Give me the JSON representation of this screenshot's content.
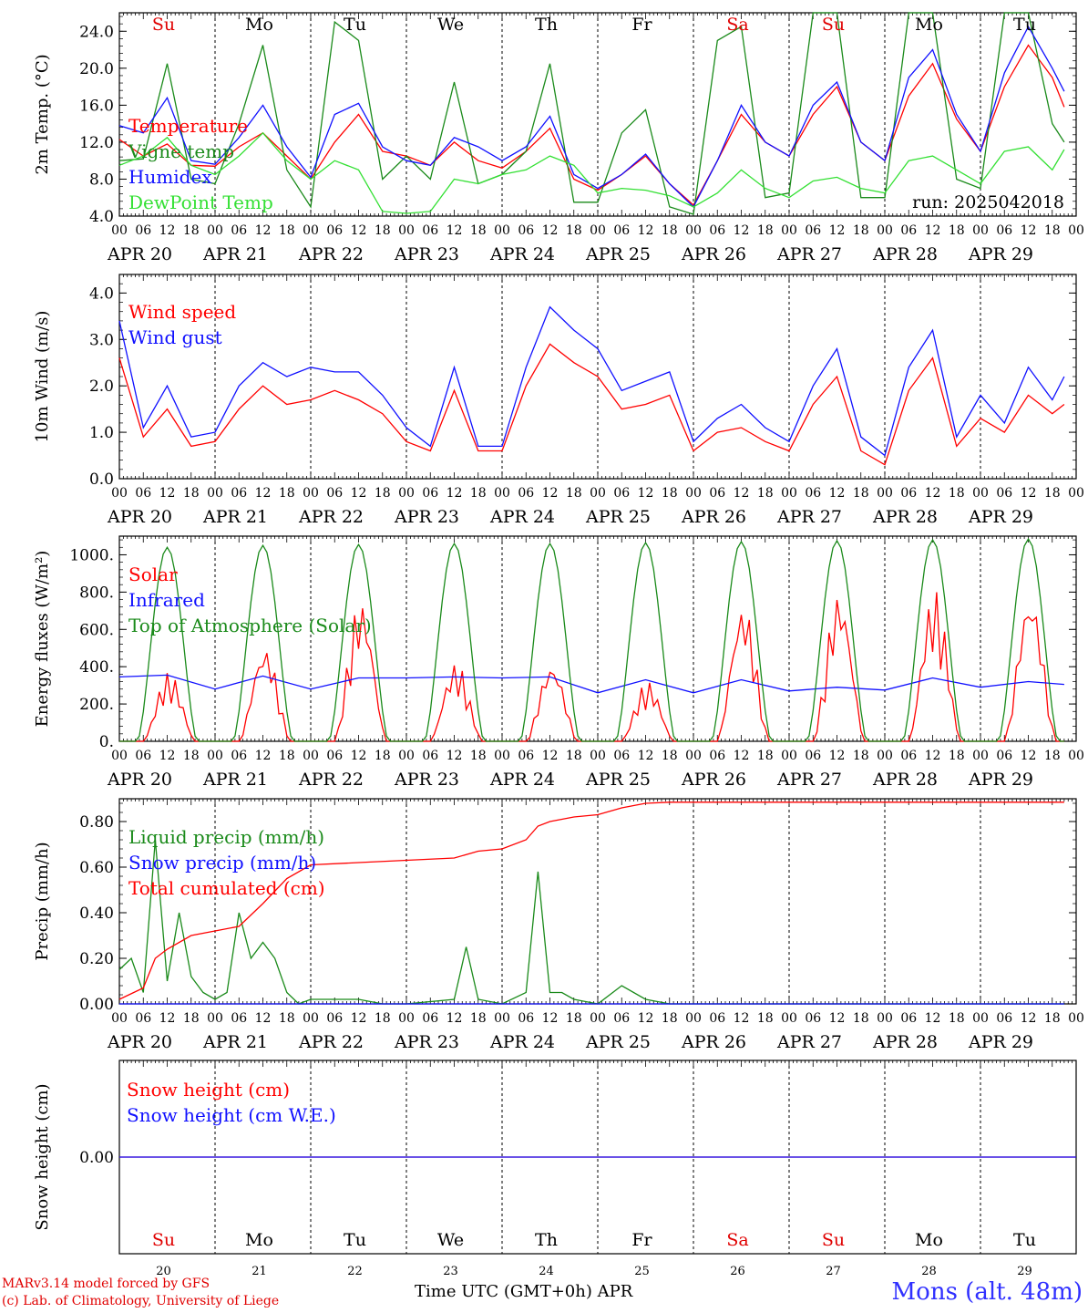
{
  "station": "Mons (alt. 48m)",
  "credit_line1": "MARv3.14 model forced by GFS",
  "credit_line2": "(c) Lab. of Climatology, University of Liege",
  "x_title": "Time UTC (GMT+0h) APR",
  "run_label": "run: 2025042018",
  "hour_ticks": [
    "00",
    "06",
    "12",
    "18"
  ],
  "end_tick": "00",
  "date_labels": [
    "APR 20",
    "APR 21",
    "APR 22",
    "APR 23",
    "APR 24",
    "APR 25",
    "APR 26",
    "APR 27",
    "APR 28",
    "APR 29"
  ],
  "day_numbers": [
    "20",
    "21",
    "22",
    "23",
    "24",
    "25",
    "26",
    "27",
    "28",
    "29"
  ],
  "day_names": [
    {
      "label": "Su",
      "weekend": true
    },
    {
      "label": "Mo",
      "weekend": false
    },
    {
      "label": "Tu",
      "weekend": false
    },
    {
      "label": "We",
      "weekend": false
    },
    {
      "label": "Th",
      "weekend": false
    },
    {
      "label": "Fr",
      "weekend": false
    },
    {
      "label": "Sa",
      "weekend": true
    },
    {
      "label": "Su",
      "weekend": true
    },
    {
      "label": "Mo",
      "weekend": false
    },
    {
      "label": "Tu",
      "weekend": false
    }
  ],
  "colors": {
    "red": "#ff0000",
    "green": "#1a8a1a",
    "blue": "#1010ff",
    "lightgreen": "#33e033",
    "weekend": "#e00000"
  },
  "chart_data": [
    {
      "type": "line",
      "ylabel": "2m Temp. (°C)",
      "ylim": [
        4,
        26
      ],
      "yticks": [
        4,
        8,
        12,
        16,
        20,
        24
      ],
      "ytick_labels": [
        "4.0",
        "8.0",
        "12.0",
        "16.0",
        "20.0",
        "24.0"
      ],
      "x": [
        0,
        6,
        12,
        18,
        24,
        30,
        36,
        42,
        48,
        54,
        60,
        66,
        72,
        78,
        84,
        90,
        96,
        102,
        108,
        114,
        120,
        126,
        132,
        138,
        144,
        150,
        156,
        162,
        168,
        174,
        180,
        186,
        192,
        198,
        204,
        210,
        216,
        222,
        228,
        234,
        237
      ],
      "series": [
        {
          "name": "Temperature",
          "color": "red",
          "values": [
            12.3,
            10.5,
            11.8,
            9.5,
            9.4,
            11.5,
            13.0,
            10.5,
            8.0,
            12.0,
            15.0,
            11.0,
            10.5,
            9.5,
            12.0,
            10.0,
            9.2,
            11.0,
            13.5,
            8.0,
            6.8,
            8.5,
            10.5,
            7.5,
            5.2,
            10.0,
            15.0,
            12.0,
            10.5,
            15.0,
            18.0,
            12.0,
            10.0,
            17.0,
            20.5,
            14.5,
            11.0,
            18.0,
            22.5,
            19.0,
            15.8
          ]
        },
        {
          "name": "Vigne temp",
          "color": "green",
          "values": [
            10.0,
            10.2,
            20.5,
            8.0,
            7.5,
            14.0,
            22.5,
            9.0,
            5.0,
            25.0,
            23.0,
            8.0,
            10.5,
            8.0,
            18.5,
            7.5,
            8.5,
            11.0,
            20.5,
            5.5,
            5.5,
            13.0,
            15.5,
            5.0,
            4.2,
            23.0,
            24.5,
            6.0,
            6.5,
            27.0,
            28.0,
            6.0,
            6.0,
            27.0,
            29.0,
            8.0,
            7.0,
            26.0,
            28.0,
            14.0,
            12.0
          ]
        },
        {
          "name": "Humidex",
          "color": "blue",
          "values": [
            13.8,
            13.0,
            16.8,
            10.0,
            9.6,
            12.5,
            16.0,
            11.5,
            8.2,
            15.0,
            16.2,
            11.5,
            10.0,
            9.5,
            12.5,
            11.5,
            10.0,
            11.5,
            14.8,
            8.5,
            7.0,
            8.5,
            10.7,
            7.5,
            5.0,
            10.0,
            16.0,
            12.0,
            10.5,
            16.0,
            18.5,
            12.0,
            10.0,
            19.0,
            22.0,
            15.0,
            11.0,
            19.5,
            24.5,
            20.0,
            17.5
          ]
        },
        {
          "name": "DewPoint Temp",
          "color": "lightgreen",
          "values": [
            9.5,
            10.5,
            12.5,
            9.5,
            8.5,
            10.5,
            13.0,
            10.0,
            8.0,
            10.0,
            9.0,
            4.5,
            4.3,
            4.5,
            8.0,
            7.5,
            8.5,
            9.0,
            10.5,
            9.5,
            6.5,
            7.0,
            6.8,
            6.2,
            5.0,
            6.5,
            9.0,
            7.0,
            6.0,
            7.8,
            8.2,
            7.0,
            6.5,
            10.0,
            10.5,
            9.0,
            7.5,
            11.0,
            11.5,
            9.0,
            11.2
          ]
        }
      ]
    },
    {
      "type": "line",
      "ylabel": "10m Wind (m/s)",
      "ylim": [
        0,
        4.4
      ],
      "yticks": [
        0,
        1,
        2,
        3,
        4
      ],
      "ytick_labels": [
        "0.0",
        "1.0",
        "2.0",
        "3.0",
        "4.0"
      ],
      "x": [
        0,
        6,
        12,
        18,
        24,
        30,
        36,
        42,
        48,
        54,
        60,
        66,
        72,
        78,
        84,
        90,
        96,
        102,
        108,
        114,
        120,
        126,
        132,
        138,
        144,
        150,
        156,
        162,
        168,
        174,
        180,
        186,
        192,
        198,
        204,
        210,
        216,
        222,
        228,
        234,
        237
      ],
      "series": [
        {
          "name": "Wind speed",
          "color": "red",
          "values": [
            2.6,
            0.9,
            1.5,
            0.7,
            0.8,
            1.5,
            2.0,
            1.6,
            1.7,
            1.9,
            1.7,
            1.4,
            0.8,
            0.6,
            1.9,
            0.6,
            0.6,
            2.0,
            2.9,
            2.5,
            2.2,
            1.5,
            1.6,
            1.8,
            0.6,
            1.0,
            1.1,
            0.8,
            0.6,
            1.6,
            2.2,
            0.6,
            0.3,
            1.9,
            2.6,
            0.7,
            1.3,
            1.0,
            1.8,
            1.4,
            1.6
          ]
        },
        {
          "name": "Wind gust",
          "color": "blue",
          "values": [
            3.4,
            1.1,
            2.0,
            0.9,
            1.0,
            2.0,
            2.5,
            2.2,
            2.4,
            2.3,
            2.3,
            1.8,
            1.1,
            0.7,
            2.4,
            0.7,
            0.7,
            2.4,
            3.7,
            3.2,
            2.8,
            1.9,
            2.1,
            2.3,
            0.8,
            1.3,
            1.6,
            1.1,
            0.8,
            2.0,
            2.8,
            0.9,
            0.5,
            2.4,
            3.2,
            0.9,
            1.8,
            1.2,
            2.4,
            1.7,
            2.2
          ]
        }
      ]
    },
    {
      "type": "line",
      "ylabel": "Energy fluxes (W/m²)",
      "ylim": [
        0,
        1100
      ],
      "yticks": [
        0,
        200,
        400,
        600,
        800,
        1000
      ],
      "ytick_labels": [
        "0.",
        "200.",
        "400.",
        "600.",
        "800.",
        "1000."
      ],
      "series": [
        {
          "name": "Solar",
          "color": "red",
          "peaks": [
            370,
            510,
            760,
            420,
            420,
            320,
            740,
            800,
            810,
            800
          ]
        },
        {
          "name": "Infrared",
          "color": "blue",
          "x": [
            0,
            12,
            24,
            36,
            48,
            60,
            72,
            84,
            96,
            108,
            120,
            132,
            144,
            156,
            168,
            180,
            192,
            204,
            216,
            228,
            237
          ],
          "values": [
            345,
            355,
            280,
            350,
            280,
            340,
            340,
            345,
            340,
            345,
            260,
            330,
            260,
            330,
            270,
            290,
            275,
            340,
            290,
            320,
            305
          ]
        },
        {
          "name": "Top of Atmosphere (Solar)",
          "color": "green",
          "peaks": [
            1040,
            1050,
            1055,
            1060,
            1060,
            1065,
            1070,
            1075,
            1080,
            1085
          ]
        }
      ]
    },
    {
      "type": "line",
      "ylabel": "Precip (mm/h)",
      "ylim": [
        0,
        0.9
      ],
      "yticks": [
        0,
        0.2,
        0.4,
        0.6,
        0.8
      ],
      "ytick_labels": [
        "0.00",
        "0.20",
        "0.40",
        "0.60",
        "0.80"
      ],
      "series": [
        {
          "name": "Liquid precip (mm/h)",
          "color": "green",
          "x": [
            0,
            3,
            6,
            9,
            12,
            15,
            18,
            21,
            24,
            27,
            30,
            33,
            36,
            39,
            42,
            45,
            48,
            60,
            66,
            72,
            84,
            87,
            90,
            96,
            102,
            105,
            108,
            111,
            114,
            120,
            126,
            132,
            138,
            237
          ],
          "values": [
            0.15,
            0.2,
            0.05,
            0.72,
            0.1,
            0.4,
            0.12,
            0.05,
            0.02,
            0.05,
            0.4,
            0.2,
            0.27,
            0.2,
            0.05,
            0.0,
            0.02,
            0.02,
            0.0,
            0.0,
            0.02,
            0.25,
            0.02,
            0.0,
            0.05,
            0.58,
            0.05,
            0.05,
            0.02,
            0.0,
            0.08,
            0.02,
            0.0,
            0.0
          ]
        },
        {
          "name": "Snow precip (mm/h)",
          "color": "blue",
          "x": [
            0,
            237
          ],
          "values": [
            0,
            0
          ]
        },
        {
          "name": "Total cumulated (cm)",
          "color": "red",
          "x": [
            0,
            6,
            9,
            12,
            18,
            24,
            30,
            36,
            42,
            48,
            60,
            72,
            84,
            90,
            96,
            102,
            105,
            108,
            114,
            120,
            126,
            132,
            138,
            237
          ],
          "values": [
            0.02,
            0.07,
            0.2,
            0.24,
            0.3,
            0.32,
            0.34,
            0.44,
            0.55,
            0.61,
            0.62,
            0.63,
            0.64,
            0.67,
            0.68,
            0.72,
            0.78,
            0.8,
            0.82,
            0.83,
            0.86,
            0.88,
            0.885,
            0.885
          ]
        }
      ]
    },
    {
      "type": "line",
      "ylabel": "Snow height (cm)",
      "yticks": [
        0
      ],
      "ytick_labels": [
        "0.00"
      ],
      "ylim": [
        -1,
        1
      ],
      "series": [
        {
          "name": "Snow height (cm)",
          "color": "red",
          "x": [
            0,
            240
          ],
          "values": [
            0,
            0
          ]
        },
        {
          "name": "Snow height (cm W.E.)",
          "color": "blue",
          "x": [
            0,
            240
          ],
          "values": [
            0,
            0
          ]
        }
      ]
    }
  ]
}
